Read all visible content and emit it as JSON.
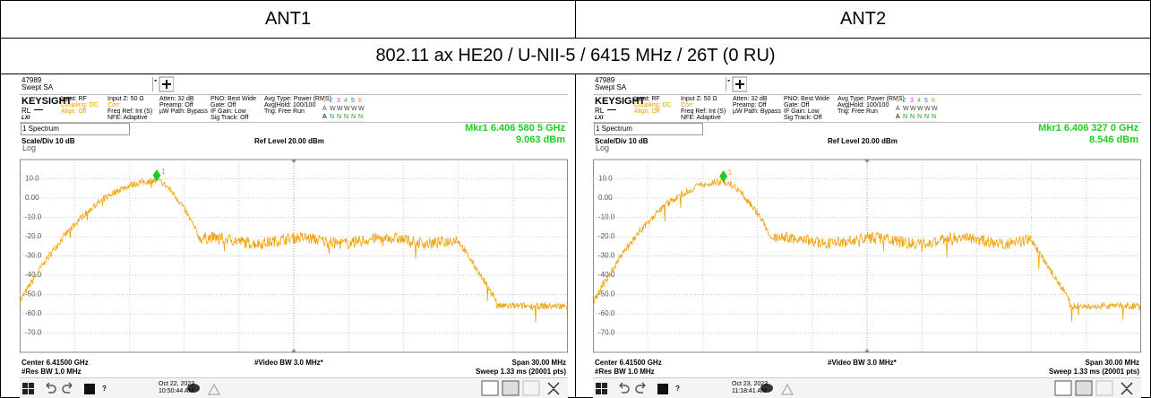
{
  "table": {
    "headers": [
      "ANT1",
      "ANT2"
    ],
    "title": "802.11 ax HE20 / U-NII-5 / 6415 MHz / 26T (0 RU)"
  },
  "panels": [
    {
      "id": "47989",
      "mode": "Swept SA",
      "brand": "KEYSIGHT",
      "rl": "RL",
      "lxi": "LXI",
      "info": [
        [
          "Input: RF",
          "Coupling: DC",
          "Align: Off"
        ],
        [
          "Input Z: 50 Ω",
          "Corr",
          "Freq Ref: Int (S)",
          "NFE: Adaptive"
        ],
        [
          "Atten: 32 dB",
          "Preamp: Off",
          "µW Path: Bypass"
        ],
        [
          "PNO: Best Wide",
          "Gate: Off",
          "IF Gain: Low",
          "Sig Track: Off"
        ],
        [
          "Avg Type: Power (RMS)",
          "Avg|Hold: 100/100",
          "Trig: Free Run"
        ]
      ],
      "trace_rows": [
        [
          "1",
          "2",
          "3",
          "4",
          "5",
          "6"
        ],
        [
          "A",
          "W",
          "W",
          "W",
          "W",
          "W"
        ],
        [
          "A",
          "N",
          "N",
          "N",
          "N",
          "N"
        ]
      ],
      "window": "1 Spectrum",
      "marker": "Mkr1  6.406 580 5 GHz",
      "marker_value": "9.063 dBm",
      "scale": "Scale/Div 10 dB",
      "ref_level": "Ref Level 20.00 dBm",
      "log": "Log",
      "yticks": [
        "10.0",
        "0.00",
        "-10.0",
        "-20.0",
        "-30.0",
        "-40.0",
        "-50.0",
        "-60.0",
        "-70.0"
      ],
      "marker_label": "1",
      "center": "Center 6.41500 GHz",
      "res_bw": "#Res BW 1.0 MHz",
      "video_bw": "#Video BW 3.0 MHz*",
      "span": "Span 30.00 MHz",
      "sweep": "Sweep 1.33 ms (20001 pts)",
      "date": "Oct 22, 2023",
      "time": "10:50:44 AM"
    },
    {
      "id": "47989",
      "mode": "Swept SA",
      "brand": "KEYSIGHT",
      "rl": "RL",
      "lxi": "LXI",
      "info": [
        [
          "Input: RF",
          "Coupling: DC",
          "Align: Off"
        ],
        [
          "Input Z: 50 Ω",
          "Corr",
          "Freq Ref: Int (S)",
          "NFE: Adaptive"
        ],
        [
          "Atten: 32 dB",
          "Preamp: Off",
          "µW Path: Bypass"
        ],
        [
          "PNO: Best Wide",
          "Gate: Off",
          "IF Gain: Low",
          "Sig Track: Off"
        ],
        [
          "Avg Type: Power (RMS)",
          "Avg|Hold: 100/100",
          "Trig: Free Run"
        ]
      ],
      "trace_rows": [
        [
          "1",
          "2",
          "3",
          "4",
          "5",
          "6"
        ],
        [
          "A",
          "W",
          "W",
          "W",
          "W",
          "W"
        ],
        [
          "A",
          "N",
          "N",
          "N",
          "N",
          "N"
        ]
      ],
      "window": "1 Spectrum",
      "marker": "Mkr1  6.406 327 0 GHz",
      "marker_value": "8.546 dBm",
      "scale": "Scale/Div 10 dB",
      "ref_level": "Ref Level 20.00 dBm",
      "log": "Log",
      "yticks": [
        "10.0",
        "0.00",
        "-10.0",
        "-20.0",
        "-30.0",
        "-40.0",
        "-50.0",
        "-60.0",
        "-70.0"
      ],
      "marker_label": "1",
      "center": "Center 6.41500 GHz",
      "res_bw": "#Res BW 1.0 MHz",
      "video_bw": "#Video BW 3.0 MHz*",
      "span": "Span 30.00 MHz",
      "sweep": "Sweep 1.33 ms (20001 pts)",
      "date": "Oct 23, 2023",
      "time": "11:18:41 AM"
    }
  ]
}
